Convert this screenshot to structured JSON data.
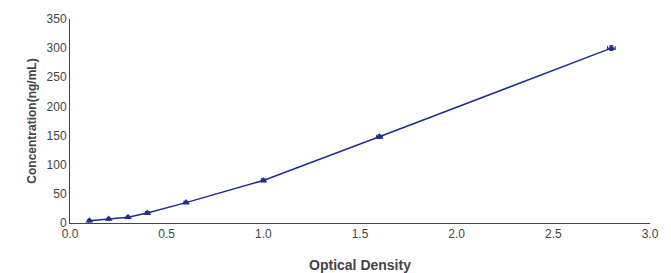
{
  "chart_data": {
    "type": "line",
    "xlabel": "Optical Density",
    "ylabel": "Concentration(ng/mL)",
    "x": [
      0.1,
      0.2,
      0.3,
      0.4,
      0.6,
      1.0,
      1.6,
      2.8
    ],
    "values": [
      4,
      7,
      10,
      17,
      35,
      73,
      148,
      300
    ],
    "xerr": [
      0.005,
      0.005,
      0.005,
      0.01,
      0.01,
      0.01,
      0.015,
      0.02
    ],
    "yerr": [
      1.5,
      1.5,
      1.5,
      1.5,
      2,
      2.5,
      3,
      4
    ],
    "color": "#1f2e8c",
    "marker": "triangle",
    "line_style": "solid",
    "xlim": [
      0,
      3.0
    ],
    "ylim": [
      0,
      350
    ],
    "xticks": [
      {
        "value": 0,
        "label": "0.0"
      },
      0.5,
      {
        "value": 1.0,
        "label": "1.0"
      },
      1.5,
      {
        "value": 2.0,
        "label": "2.0"
      },
      2.5,
      {
        "value": 3.0,
        "label": "3.0"
      }
    ],
    "yticks": [
      0,
      50,
      100,
      150,
      200,
      250,
      300,
      350
    ],
    "grid": false
  }
}
